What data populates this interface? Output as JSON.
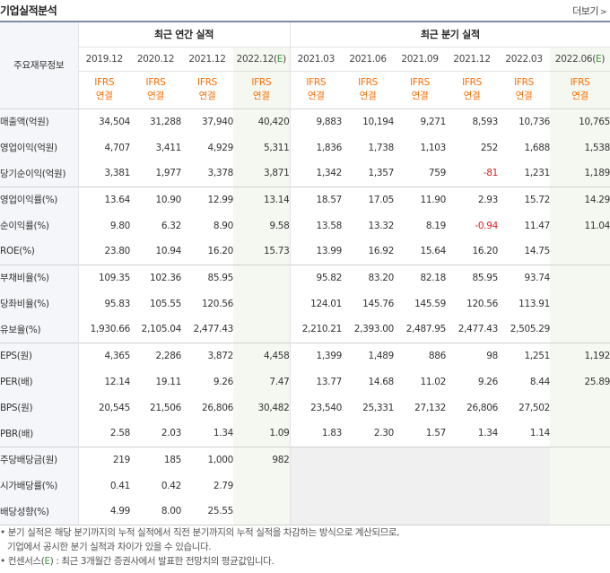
{
  "header": {
    "title": "기업실적분석",
    "more_label": "더보기"
  },
  "table": {
    "corner_label": "주요재무정보",
    "group_annual": "최근 연간 실적",
    "group_quarter": "최근 분기 실적",
    "periods": [
      "2019.12",
      "2020.12",
      "2021.12",
      "2022.12(E)",
      "2021.03",
      "2021.06",
      "2021.09",
      "2021.12",
      "2022.03",
      "2022.06(E)"
    ],
    "standard": [
      "IFRS",
      "IFRS",
      "IFRS",
      "IFRS",
      "IFRS",
      "IFRS",
      "IFRS",
      "IFRS",
      "IFRS",
      "IFRS"
    ],
    "basis": [
      "연결",
      "연결",
      "연결",
      "연결",
      "연결",
      "연결",
      "연결",
      "연결",
      "연결",
      "연결"
    ],
    "rows": [
      {
        "label": "매출액(억원)",
        "values": [
          "34,504",
          "31,288",
          "37,940",
          "40,420",
          "9,883",
          "10,194",
          "9,271",
          "8,593",
          "10,736",
          "10,765"
        ]
      },
      {
        "label": "영업이익(억원)",
        "values": [
          "4,707",
          "3,411",
          "4,929",
          "5,311",
          "1,836",
          "1,738",
          "1,103",
          "252",
          "1,688",
          "1,538"
        ]
      },
      {
        "label": "당기순이익(억원)",
        "values": [
          "3,381",
          "1,977",
          "3,378",
          "3,871",
          "1,342",
          "1,357",
          "759",
          "-81",
          "1,231",
          "1,189"
        ]
      },
      {
        "label": "영업이익률(%)",
        "values": [
          "13.64",
          "10.90",
          "12.99",
          "13.14",
          "18.57",
          "17.05",
          "11.90",
          "2.93",
          "15.72",
          "14.29"
        ]
      },
      {
        "label": "순이익률(%)",
        "values": [
          "9.80",
          "6.32",
          "8.90",
          "9.58",
          "13.58",
          "13.32",
          "8.19",
          "-0.94",
          "11.47",
          "11.04"
        ]
      },
      {
        "label": "ROE(%)",
        "values": [
          "23.80",
          "10.94",
          "16.20",
          "15.73",
          "13.99",
          "16.92",
          "15.64",
          "16.20",
          "14.75",
          ""
        ]
      },
      {
        "label": "부채비율(%)",
        "values": [
          "109.35",
          "102.36",
          "85.95",
          "",
          "95.82",
          "83.20",
          "82.18",
          "85.95",
          "93.74",
          ""
        ]
      },
      {
        "label": "당좌비율(%)",
        "values": [
          "95.83",
          "105.55",
          "120.56",
          "",
          "124.01",
          "145.76",
          "145.59",
          "120.56",
          "113.91",
          ""
        ]
      },
      {
        "label": "유보율(%)",
        "values": [
          "1,930.66",
          "2,105.04",
          "2,477.43",
          "",
          "2,210.21",
          "2,393.00",
          "2,487.95",
          "2,477.43",
          "2,505.29",
          ""
        ]
      },
      {
        "label": "EPS(원)",
        "values": [
          "4,365",
          "2,286",
          "3,872",
          "4,458",
          "1,399",
          "1,489",
          "886",
          "98",
          "1,251",
          "1,192"
        ]
      },
      {
        "label": "PER(배)",
        "values": [
          "12.14",
          "19.11",
          "9.26",
          "7.47",
          "13.77",
          "14.68",
          "11.02",
          "9.26",
          "8.44",
          "25.89"
        ]
      },
      {
        "label": "BPS(원)",
        "values": [
          "20,545",
          "21,506",
          "26,806",
          "30,482",
          "23,540",
          "25,331",
          "27,132",
          "26,806",
          "27,502",
          ""
        ]
      },
      {
        "label": "PBR(배)",
        "values": [
          "2.58",
          "2.03",
          "1.34",
          "1.09",
          "1.83",
          "2.30",
          "1.57",
          "1.34",
          "1.14",
          ""
        ]
      },
      {
        "label": "주당배당금(원)",
        "values": [
          "219",
          "185",
          "1,000",
          "982",
          "",
          "",
          "",
          "",
          "",
          ""
        ]
      },
      {
        "label": "시가배당률(%)",
        "values": [
          "0.41",
          "0.42",
          "2.79",
          "",
          "",
          "",
          "",
          "",
          "",
          ""
        ]
      },
      {
        "label": "배당성향(%)",
        "values": [
          "4.99",
          "8.00",
          "25.55",
          "",
          "",
          "",
          "",
          "",
          "",
          ""
        ]
      }
    ]
  },
  "notes": {
    "line1": "• 분기 실적은 해당 분기까지의 누적 실적에서 직전 분기까지의 누적 실적을 차감하는 방식으로 계산되므로,",
    "line2": "기업에서 공시한 분기 실적과 차이가 있을 수 있습니다.",
    "line3_prefix": "• 컨센서스(",
    "line3_e": "E",
    "line3_suffix": ") : 최근 3개월간 증권사에서 발표한 전망치의 평균값입니다."
  },
  "colors": {
    "accent_orange": "#ff6b00",
    "negative_red": "#e02020",
    "estimate_green": "#3b9a3b",
    "estimate_bg": "#f4f8f0",
    "header_border": "#7e8aa6"
  }
}
